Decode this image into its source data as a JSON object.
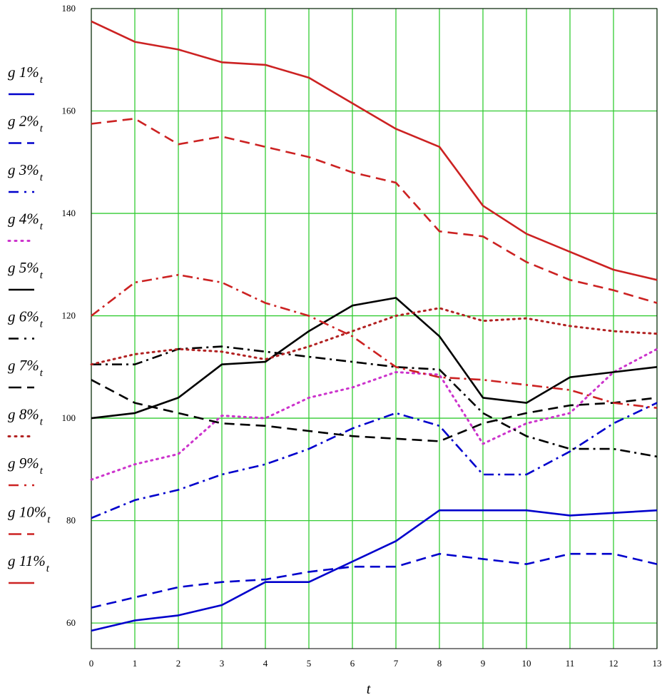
{
  "chart_data": {
    "type": "line",
    "xlabel": "t",
    "ylabel": "",
    "xlim": [
      0,
      13
    ],
    "ylim": [
      55,
      180
    ],
    "x_ticks": [
      "0",
      "1",
      "2",
      "3",
      "4",
      "5",
      "6",
      "7",
      "8",
      "9",
      "10",
      "11",
      "12",
      "13"
    ],
    "y_ticks": [
      "60",
      "80",
      "100",
      "120",
      "140",
      "160",
      "180"
    ],
    "y_tick_values": [
      60,
      80,
      100,
      120,
      140,
      160,
      180
    ],
    "grid": true,
    "grid_color": "#33cc33",
    "legend_position": "left",
    "x": [
      0,
      1,
      2,
      3,
      4,
      5,
      6,
      7,
      8,
      9,
      10,
      11,
      12,
      13
    ],
    "series": [
      {
        "name": "g 1%",
        "sub": "t",
        "color": "#0000cc",
        "dash": "solid",
        "values": [
          58.5,
          60.5,
          61.5,
          63.5,
          68,
          68,
          72,
          76,
          82,
          82,
          82,
          81,
          81.5,
          82
        ]
      },
      {
        "name": "g 2%",
        "sub": "t",
        "color": "#0000cc",
        "dash": "dash",
        "values": [
          63,
          65,
          67,
          68,
          68.5,
          70,
          71,
          71,
          73.5,
          72.5,
          71.5,
          73.5,
          73.5,
          71.5
        ]
      },
      {
        "name": "g 3%",
        "sub": "t",
        "color": "#0000cc",
        "dash": "dashdot",
        "values": [
          80.5,
          84,
          86,
          89,
          91,
          94,
          98,
          101,
          98.5,
          89,
          89,
          93.5,
          99,
          103
        ]
      },
      {
        "name": "g 4%",
        "sub": "t",
        "color": "#cc33cc",
        "dash": "dot",
        "values": [
          88,
          91,
          93,
          100.5,
          100,
          104,
          106,
          109,
          108.5,
          95,
          99,
          101,
          109,
          113.5
        ]
      },
      {
        "name": "g 5%",
        "sub": "t",
        "color": "#000000",
        "dash": "solid",
        "values": [
          100,
          101,
          104,
          110.5,
          111,
          117,
          122,
          123.5,
          116,
          104,
          103,
          108,
          109,
          110
        ]
      },
      {
        "name": "g 6%",
        "sub": "t",
        "color": "#000000",
        "dash": "dashdot",
        "values": [
          110.5,
          110.5,
          113.5,
          114,
          113,
          112,
          111,
          110,
          109.5,
          101,
          96.5,
          94,
          94,
          92.5
        ]
      },
      {
        "name": "g 7%",
        "sub": "t",
        "color": "#000000",
        "dash": "dash",
        "values": [
          107.5,
          103,
          101,
          99,
          98.5,
          97.5,
          96.5,
          96,
          95.5,
          99,
          101,
          102.5,
          103,
          104
        ]
      },
      {
        "name": "g 8%",
        "sub": "t",
        "color": "#b22222",
        "dash": "dot",
        "values": [
          110.5,
          112.5,
          113.5,
          113,
          111.5,
          114,
          117,
          120,
          121.5,
          119,
          119.5,
          118,
          117,
          116.5
        ]
      },
      {
        "name": "g 9%",
        "sub": "t",
        "color": "#cc2222",
        "dash": "dashdot",
        "values": [
          120,
          126.5,
          128,
          126.5,
          122.5,
          120,
          116,
          110,
          108,
          107.5,
          106.5,
          105.5,
          103,
          102
        ]
      },
      {
        "name": "g 10%",
        "sub": "t",
        "color": "#cc2222",
        "dash": "dash",
        "values": [
          157.5,
          158.5,
          153.5,
          155,
          153,
          151,
          148,
          146,
          136.5,
          135.5,
          130.5,
          127,
          125,
          122.5
        ]
      },
      {
        "name": "g 11%",
        "sub": "t",
        "color": "#cc2222",
        "dash": "solid",
        "values": [
          177.5,
          173.5,
          172,
          169.5,
          169,
          166.5,
          161.5,
          156.5,
          153,
          141.5,
          136,
          132.5,
          129,
          127
        ]
      }
    ]
  }
}
